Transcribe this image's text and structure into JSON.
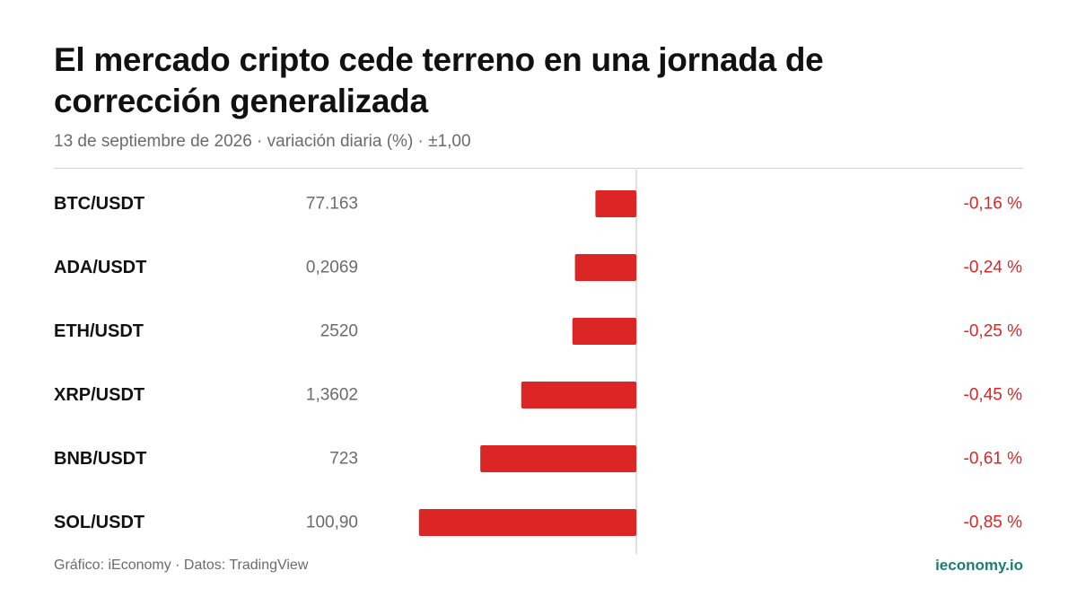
{
  "header": {
    "title": "El mercado cripto cede terreno en una jornada de corrección generalizada",
    "subtitle": "13 de septiembre de 2026 · variación diaria (%) · ±1,00"
  },
  "footer": {
    "source": "Gráfico: iEconomy · Datos: TradingView",
    "brand": "ieconomy.io"
  },
  "colors": {
    "negative": "#dc2626",
    "label": "#111111",
    "price": "#6b6b6b",
    "axis": "#d4d4d4",
    "brand": "#1a7f73"
  },
  "chart_data": {
    "type": "bar",
    "orientation": "horizontal",
    "xlim": [
      -1.0,
      1.0
    ],
    "categories": [
      "BTC/USDT",
      "ADA/USDT",
      "ETH/USDT",
      "XRP/USDT",
      "BNB/USDT",
      "SOL/USDT"
    ],
    "prices": [
      "77.163",
      "0,2069",
      "2520",
      "1,3602",
      "723",
      "100,90"
    ],
    "values": [
      -0.16,
      -0.24,
      -0.25,
      -0.45,
      -0.61,
      -0.85
    ],
    "value_labels": [
      "-0,16 %",
      "-0,24 %",
      "-0,25 %",
      "-0,45 %",
      "-0,61 %",
      "-0,85 %"
    ]
  }
}
